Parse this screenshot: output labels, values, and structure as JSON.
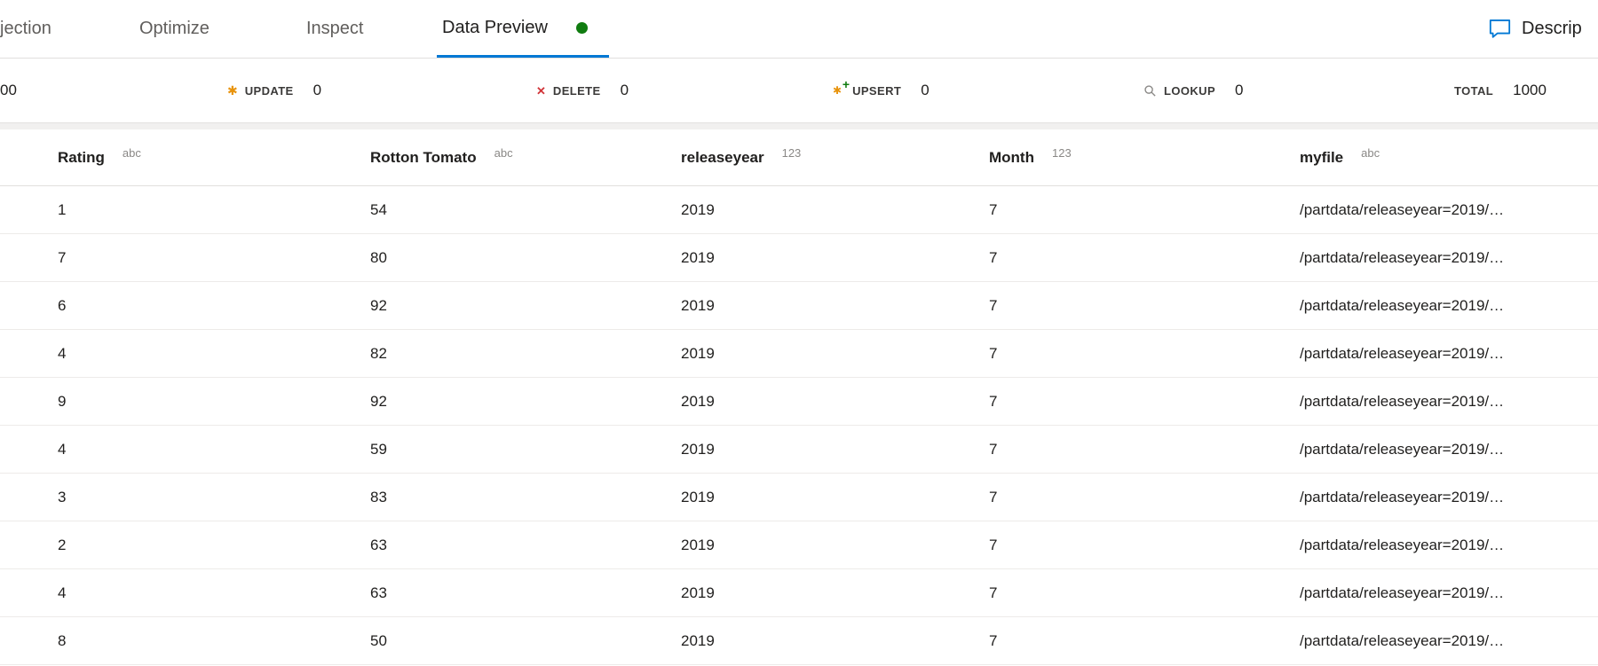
{
  "colors": {
    "accent": "#0078d4",
    "status_dot": "#107c10",
    "update_icon": "#e8930c",
    "delete_icon": "#d13438",
    "upsert_plus": "#107c10",
    "lookup_icon": "#8a8886"
  },
  "tabs": [
    {
      "label": "jection",
      "active": false
    },
    {
      "label": "Optimize",
      "active": false
    },
    {
      "label": "Inspect",
      "active": false
    },
    {
      "label": "Data Preview",
      "active": true,
      "status_dot": true
    }
  ],
  "description": {
    "label": "Descrip",
    "icon": "comment-icon"
  },
  "stats": [
    {
      "label": "",
      "value": "00",
      "icon": ""
    },
    {
      "label": "UPDATE",
      "value": "0",
      "icon": "update-asterisk-icon"
    },
    {
      "label": "DELETE",
      "value": "0",
      "icon": "delete-x-icon"
    },
    {
      "label": "UPSERT",
      "value": "0",
      "icon": "upsert-asterisk-plus-icon"
    },
    {
      "label": "LOOKUP",
      "value": "0",
      "icon": "lookup-magnifier-icon"
    },
    {
      "label": "TOTAL",
      "value": "1000",
      "icon": ""
    }
  ],
  "table": {
    "columns": [
      {
        "name": "Rating",
        "type": "abc"
      },
      {
        "name": "Rotton Tomato",
        "type": "abc"
      },
      {
        "name": "releaseyear",
        "type": "123"
      },
      {
        "name": "Month",
        "type": "123"
      },
      {
        "name": "myfile",
        "type": "abc"
      }
    ],
    "rows": [
      [
        "1",
        "54",
        "2019",
        "7",
        "/partdata/releaseyear=2019/…"
      ],
      [
        "7",
        "80",
        "2019",
        "7",
        "/partdata/releaseyear=2019/…"
      ],
      [
        "6",
        "92",
        "2019",
        "7",
        "/partdata/releaseyear=2019/…"
      ],
      [
        "4",
        "82",
        "2019",
        "7",
        "/partdata/releaseyear=2019/…"
      ],
      [
        "9",
        "92",
        "2019",
        "7",
        "/partdata/releaseyear=2019/…"
      ],
      [
        "4",
        "59",
        "2019",
        "7",
        "/partdata/releaseyear=2019/…"
      ],
      [
        "3",
        "83",
        "2019",
        "7",
        "/partdata/releaseyear=2019/…"
      ],
      [
        "2",
        "63",
        "2019",
        "7",
        "/partdata/releaseyear=2019/…"
      ],
      [
        "4",
        "63",
        "2019",
        "7",
        "/partdata/releaseyear=2019/…"
      ],
      [
        "8",
        "50",
        "2019",
        "7",
        "/partdata/releaseyear=2019/…"
      ]
    ]
  }
}
